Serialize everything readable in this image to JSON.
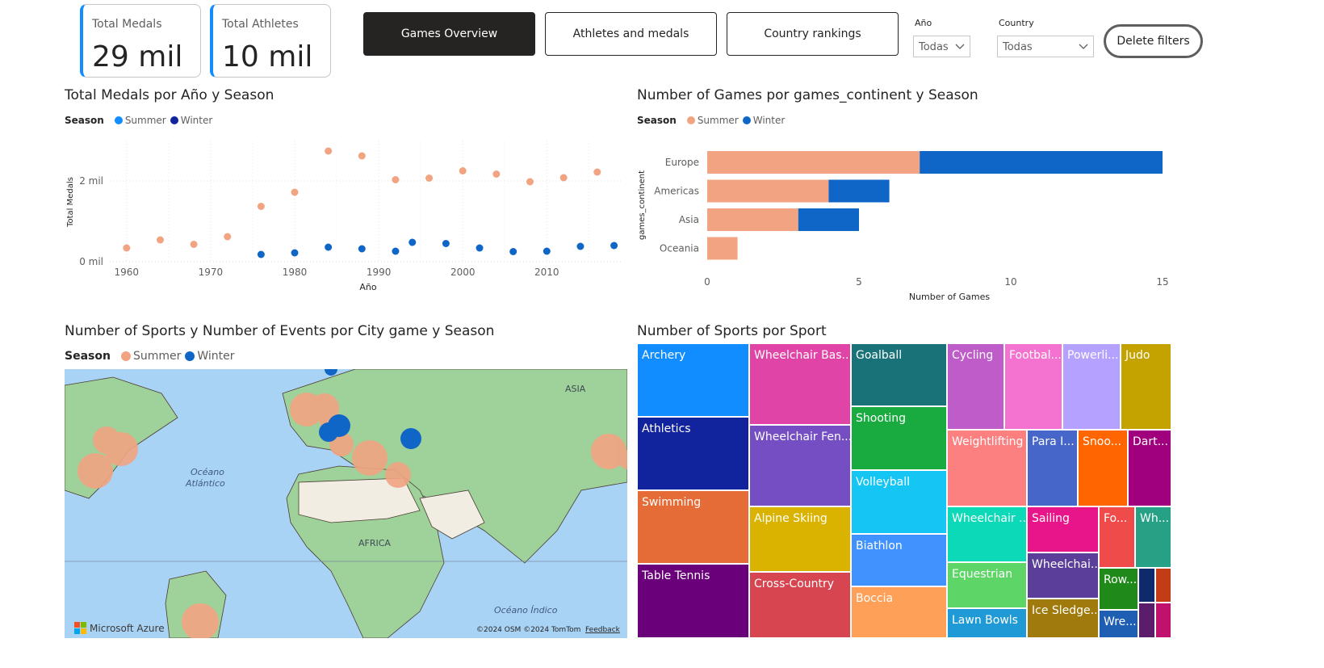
{
  "kpis": {
    "total_medals": {
      "label": "Total Medals",
      "value": "29 mil"
    },
    "total_athletes": {
      "label": "Total Athletes",
      "value": "10 mil"
    }
  },
  "nav": {
    "games_overview": "Games Overview",
    "athletes_medals": "Athletes and medals",
    "country_rankings": "Country rankings",
    "active": "games_overview"
  },
  "filters": {
    "year": {
      "label": "Año",
      "value": "Todas"
    },
    "country": {
      "label": "Country",
      "value": "Todas"
    },
    "delete_label": "Delete filters"
  },
  "colors": {
    "summer": "#f2a482",
    "winter": "#1066c6",
    "summer_legend_chart1": "#118dff",
    "winter_legend_chart1": "#12239e"
  },
  "medals_chart": {
    "title": "Total Medals por Año y Season",
    "legend_title": "Season",
    "legend": [
      "Summer",
      "Winter"
    ],
    "xlabel": "Año",
    "ylabel": "Total Medals",
    "y_ticks": [
      "0 mil",
      "2 mil"
    ],
    "x_ticks": [
      "1960",
      "1970",
      "1980",
      "1990",
      "2000",
      "2010"
    ]
  },
  "games_chart": {
    "title": "Number of Games por games_continent y Season",
    "legend_title": "Season",
    "legend": [
      "Summer",
      "Winter"
    ],
    "xlabel": "Number of Games",
    "ylabel": "games_continent",
    "x_ticks": [
      "0",
      "5",
      "10",
      "15"
    ]
  },
  "map_visual": {
    "title": "Number of Sports y Number of Events por City game y Season",
    "legend_title": "Season",
    "legend": [
      "Summer",
      "Winter"
    ],
    "labels": {
      "ocean_atlantic": "Océano Atlántico",
      "asia": "ASIA",
      "africa": "AFRICA",
      "ocean_indian": "Océano Índico"
    },
    "brand": "Microsoft Azure",
    "copyright": "©2024 OSM ©2024 TomTom",
    "feedback": "Feedback"
  },
  "treemap": {
    "title": "Number of Sports por Sport"
  },
  "chart_data": [
    {
      "type": "scatter",
      "title": "Total Medals por Año y Season",
      "xlabel": "Año",
      "ylabel": "Total Medals",
      "xlim": [
        1958,
        2019
      ],
      "ylim": [
        0,
        2800
      ],
      "series": [
        {
          "name": "Summer",
          "x": [
            1960,
            1964,
            1968,
            1972,
            1976,
            1980,
            1984,
            1988,
            1992,
            1996,
            2000,
            2004,
            2008,
            2012,
            2016
          ],
          "y": [
            340,
            540,
            430,
            620,
            1370,
            1720,
            2740,
            2620,
            2030,
            2070,
            2250,
            2170,
            1980,
            2080,
            2220
          ]
        },
        {
          "name": "Winter",
          "x": [
            1976,
            1980,
            1984,
            1988,
            1992,
            1994,
            1998,
            2002,
            2006,
            2010,
            2014,
            2018
          ],
          "y": [
            180,
            220,
            360,
            320,
            260,
            480,
            450,
            340,
            250,
            260,
            380,
            400
          ]
        }
      ]
    },
    {
      "type": "bar",
      "title": "Number of Games por games_continent y Season",
      "xlabel": "Number of Games",
      "ylabel": "games_continent",
      "categories": [
        "Europe",
        "Americas",
        "Asia",
        "Oceania"
      ],
      "xlim": [
        0,
        15
      ],
      "series": [
        {
          "name": "Summer",
          "values": [
            7,
            4,
            3,
            1
          ]
        },
        {
          "name": "Winter",
          "values": [
            8,
            2,
            2,
            0
          ]
        }
      ]
    },
    {
      "type": "treemap",
      "title": "Number of Sports por Sport",
      "categories": [
        "Archery",
        "Athletics",
        "Swimming",
        "Table Tennis",
        "Wheelchair Bas...",
        "Wheelchair Fen...",
        "Alpine Skiing",
        "Cross-Country",
        "Goalball",
        "Shooting",
        "Volleyball",
        "Biathlon",
        "Boccia",
        "Cycling",
        "Footbal...",
        "Powerli...",
        "Judo",
        "Weightlifting",
        "Para I...",
        "Snoo...",
        "Dart...",
        "Wheelchair ...",
        "Equestrian",
        "Lawn Bowls",
        "Sailing",
        "Fo...",
        "Wh...",
        "Wheelchai...",
        "Ice Sledge...",
        "Row...",
        "Wre..."
      ]
    }
  ],
  "treemap_tiles": [
    {
      "label": "Archery",
      "color": "#118dff"
    },
    {
      "label": "Athletics",
      "color": "#12239e"
    },
    {
      "label": "Swimming",
      "color": "#e66c37"
    },
    {
      "label": "Table Tennis",
      "color": "#6b007b"
    },
    {
      "label": "Wheelchair Bas...",
      "color": "#e044a7"
    },
    {
      "label": "Wheelchair Fen...",
      "color": "#744ec2"
    },
    {
      "label": "Alpine Skiing",
      "color": "#d9b300"
    },
    {
      "label": "Cross-Country",
      "color": "#d64550"
    },
    {
      "label": "Goalball",
      "color": "#197278"
    },
    {
      "label": "Shooting",
      "color": "#1aab40"
    },
    {
      "label": "Volleyball",
      "color": "#15c6f4"
    },
    {
      "label": "Biathlon",
      "color": "#4092ff"
    },
    {
      "label": "Boccia",
      "color": "#ffa058"
    },
    {
      "label": "Cycling",
      "color": "#be5dc9"
    },
    {
      "label": "Footbal...",
      "color": "#f472d0"
    },
    {
      "label": "Powerli...",
      "color": "#b5a1ff"
    },
    {
      "label": "Judo",
      "color": "#c4a200"
    },
    {
      "label": "Weightlifting",
      "color": "#fd8080"
    },
    {
      "label": "Para I...",
      "color": "#4666c9"
    },
    {
      "label": "Snoo...",
      "color": "#ff6600"
    },
    {
      "label": "Dart...",
      "color": "#a0007d"
    },
    {
      "label": "Wheelchair ...",
      "color": "#0bd9b7"
    },
    {
      "label": "Equestrian",
      "color": "#5dd567"
    },
    {
      "label": "Lawn Bowls",
      "color": "#1f9ad6"
    },
    {
      "label": "Sailing",
      "color": "#e8158a"
    },
    {
      "label": "Fo...",
      "color": "#ef4b4b"
    },
    {
      "label": "Wh...",
      "color": "#26a186"
    },
    {
      "label": "Wheelchai...",
      "color": "#5b3e9a"
    },
    {
      "label": "Ice Sledge...",
      "color": "#a07a0c"
    },
    {
      "label": "Row...",
      "color": "#1f8a1a"
    },
    {
      "label": "Wre...",
      "color": "#1e5fb4"
    },
    {
      "label": "",
      "color": "#0f2a6b"
    },
    {
      "label": "",
      "color": "#c43c16"
    },
    {
      "label": "",
      "color": "#5a1c6b"
    },
    {
      "label": "",
      "color": "#c0116e"
    }
  ]
}
